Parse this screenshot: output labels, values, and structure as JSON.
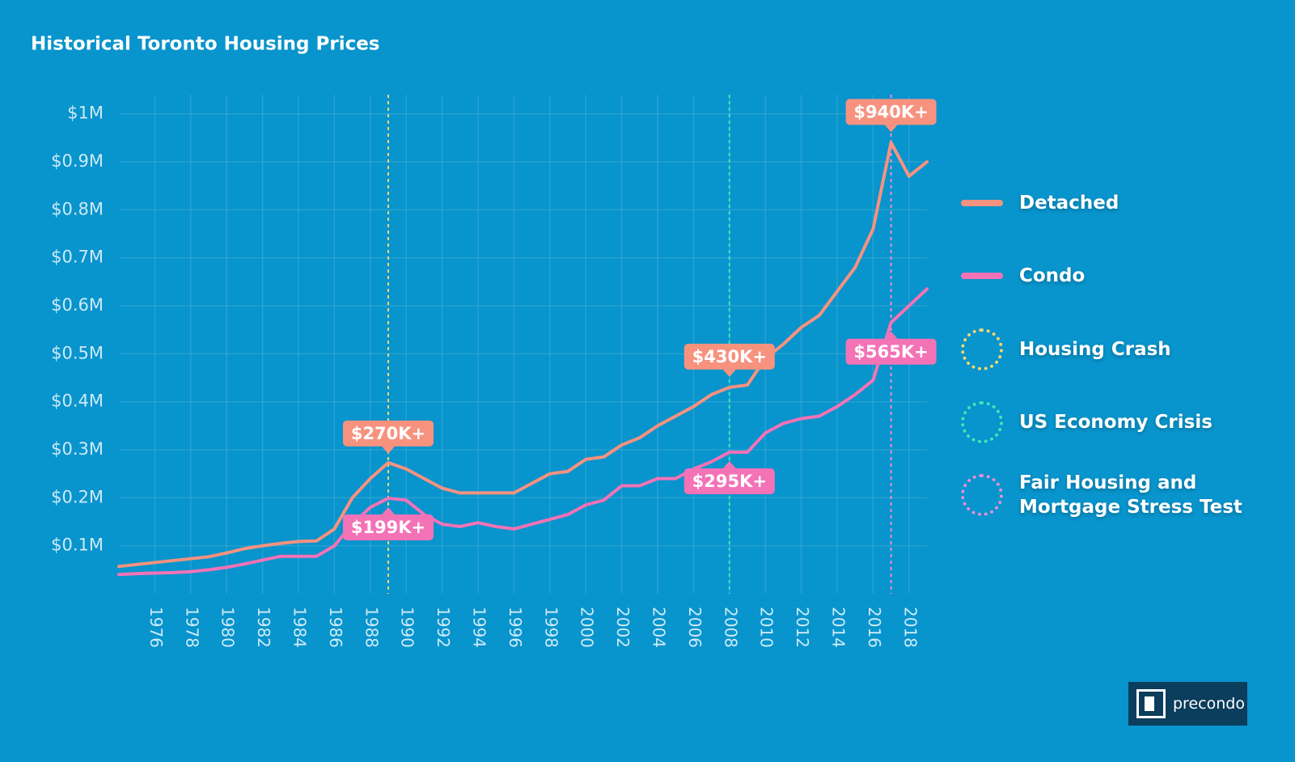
{
  "chart_data": {
    "type": "line",
    "title": "Historical Toronto Housing Prices",
    "x": [
      1974,
      1975,
      1976,
      1977,
      1978,
      1979,
      1980,
      1981,
      1982,
      1983,
      1984,
      1985,
      1986,
      1987,
      1988,
      1989,
      1990,
      1991,
      1992,
      1993,
      1994,
      1995,
      1996,
      1997,
      1998,
      1999,
      2000,
      2001,
      2002,
      2003,
      2004,
      2005,
      2006,
      2007,
      2008,
      2009,
      2010,
      2011,
      2012,
      2013,
      2014,
      2015,
      2016,
      2017,
      2018,
      2019
    ],
    "xlim": [
      1974,
      2019
    ],
    "xticks": [
      1976,
      1978,
      1980,
      1982,
      1984,
      1986,
      1988,
      1990,
      1992,
      1994,
      1996,
      1998,
      2000,
      2002,
      2004,
      2006,
      2008,
      2010,
      2012,
      2014,
      2016,
      2018
    ],
    "ylim": [
      0,
      1.04
    ],
    "yticks": [
      {
        "value": 0.1,
        "label": "$0.1M"
      },
      {
        "value": 0.2,
        "label": "$0.2M"
      },
      {
        "value": 0.3,
        "label": "$0.3M"
      },
      {
        "value": 0.4,
        "label": "$0.4M"
      },
      {
        "value": 0.5,
        "label": "$0.5M"
      },
      {
        "value": 0.6,
        "label": "$0.6M"
      },
      {
        "value": 0.7,
        "label": "$0.7M"
      },
      {
        "value": 0.8,
        "label": "$0.8M"
      },
      {
        "value": 0.9,
        "label": "$0.9M"
      },
      {
        "value": 1,
        "label": "$1M"
      }
    ],
    "grid": true,
    "series": [
      {
        "name": "Detached",
        "color": "#f7927f",
        "values": [
          0.057,
          0.061,
          0.065,
          0.069,
          0.073,
          0.077,
          0.085,
          0.094,
          0.1,
          0.105,
          0.109,
          0.11,
          0.135,
          0.2,
          0.24,
          0.273,
          0.26,
          0.24,
          0.22,
          0.21,
          0.21,
          0.21,
          0.21,
          0.23,
          0.25,
          0.255,
          0.28,
          0.285,
          0.31,
          0.325,
          0.35,
          0.37,
          0.39,
          0.415,
          0.43,
          0.435,
          0.49,
          0.52,
          0.555,
          0.58,
          0.63,
          0.68,
          0.76,
          0.94,
          0.87,
          0.9
        ],
        "annotations": [
          {
            "x": 1989,
            "value": 0.27,
            "label": "$270K+"
          },
          {
            "x": 2008,
            "value": 0.43,
            "label": "$430K+"
          },
          {
            "x": 2017,
            "value": 0.94,
            "label": "$940K+"
          }
        ]
      },
      {
        "name": "Condo",
        "color": "#f472b6",
        "values": [
          0.04,
          0.042,
          0.043,
          0.044,
          0.046,
          0.05,
          0.055,
          0.062,
          0.07,
          0.078,
          0.078,
          0.078,
          0.1,
          0.145,
          0.18,
          0.199,
          0.195,
          0.165,
          0.145,
          0.14,
          0.148,
          0.14,
          0.135,
          0.145,
          0.155,
          0.165,
          0.185,
          0.195,
          0.225,
          0.225,
          0.24,
          0.24,
          0.26,
          0.275,
          0.295,
          0.295,
          0.335,
          0.355,
          0.365,
          0.37,
          0.39,
          0.415,
          0.445,
          0.565,
          0.6,
          0.635
        ],
        "annotations": [
          {
            "x": 1989,
            "value": 0.199,
            "label": "$199K+"
          },
          {
            "x": 2008,
            "value": 0.295,
            "label": "$295K+"
          },
          {
            "x": 2017,
            "value": 0.565,
            "label": "$565K+"
          }
        ]
      }
    ],
    "events": [
      {
        "name": "Housing Crash",
        "x": 1989,
        "color": "#f5d76e"
      },
      {
        "name": "US Economy Crisis",
        "x": 2008,
        "color": "#3ee8b5"
      },
      {
        "name": "Fair Housing and Mortgage Stress Test",
        "x": 2017,
        "color": "#e98fd6"
      }
    ]
  },
  "brand": "precondo"
}
